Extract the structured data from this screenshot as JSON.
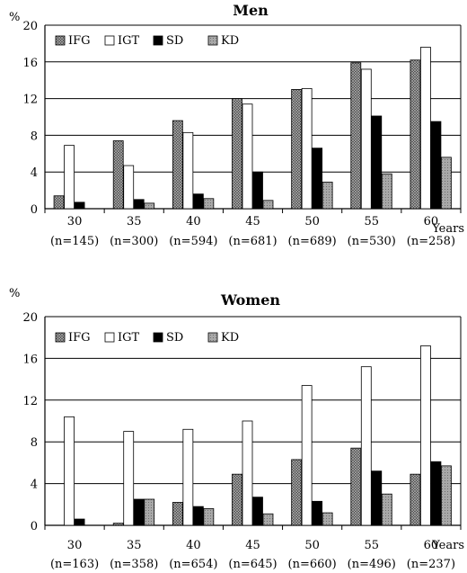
{
  "patterns": {
    "IFG": "dark-crosshatch",
    "IGT": "white",
    "SD": "black",
    "KD": "light-grey-dotted"
  },
  "chart_data": [
    {
      "type": "bar",
      "title": "Men",
      "ylabel": "%",
      "xlabel": "Years",
      "ylim": [
        0,
        20
      ],
      "yticks": [
        "0",
        "4",
        "8",
        "12",
        "16",
        "20"
      ],
      "categories": [
        "30",
        "35",
        "40",
        "45",
        "50",
        "55",
        "60"
      ],
      "sample_sizes": [
        "(n=145)",
        "(n=300)",
        "(n=594)",
        "(n=681)",
        "(n=689)",
        "(n=530)",
        "(n=258)"
      ],
      "legend_position": "top-left",
      "grid": true,
      "series": [
        {
          "name": "IFG",
          "values": [
            1.4,
            7.4,
            9.6,
            12.0,
            13.0,
            15.9,
            16.2
          ]
        },
        {
          "name": "IGT",
          "values": [
            6.9,
            4.7,
            8.3,
            11.4,
            13.1,
            15.2,
            17.6
          ]
        },
        {
          "name": "SD",
          "values": [
            0.7,
            1.0,
            1.6,
            4.0,
            6.6,
            10.1,
            9.5
          ]
        },
        {
          "name": "KD",
          "values": [
            0.0,
            0.6,
            1.1,
            0.9,
            2.9,
            3.8,
            5.6
          ]
        }
      ]
    },
    {
      "type": "bar",
      "title": "Women",
      "ylabel": "%",
      "xlabel": "Years",
      "ylim": [
        0,
        20
      ],
      "yticks": [
        "0",
        "4",
        "8",
        "12",
        "16",
        "20"
      ],
      "categories": [
        "30",
        "35",
        "40",
        "45",
        "50",
        "55",
        "60"
      ],
      "sample_sizes": [
        "(n=163)",
        "(n=358)",
        "(n=654)",
        "(n=645)",
        "(n=660)",
        "(n=496)",
        "(n=237)"
      ],
      "legend_position": "top-left",
      "grid": true,
      "series": [
        {
          "name": "IFG",
          "values": [
            0.0,
            0.2,
            2.2,
            4.9,
            6.3,
            7.4,
            4.9
          ]
        },
        {
          "name": "IGT",
          "values": [
            10.4,
            9.0,
            9.2,
            10.0,
            13.4,
            15.2,
            17.2
          ]
        },
        {
          "name": "SD",
          "values": [
            0.6,
            2.5,
            1.8,
            2.7,
            2.3,
            5.2,
            6.1
          ]
        },
        {
          "name": "KD",
          "values": [
            0.0,
            2.5,
            1.6,
            1.1,
            1.2,
            3.0,
            5.7
          ]
        }
      ]
    }
  ]
}
